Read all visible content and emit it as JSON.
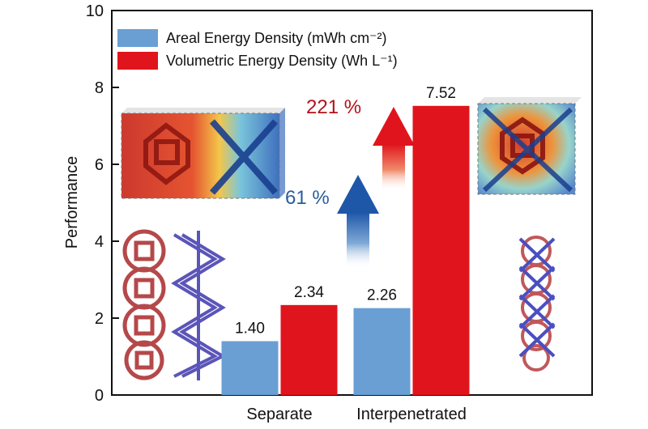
{
  "chart_data": {
    "type": "bar",
    "categories": [
      "Separate",
      "Interpenetrated"
    ],
    "series": [
      {
        "name": "Areal Energy Density (mWh cm⁻²)",
        "values": [
          1.4,
          2.26
        ],
        "color": "#6a9fd4"
      },
      {
        "name": "Volumetric Energy Density (Wh L⁻¹)",
        "values": [
          2.34,
          7.52
        ],
        "color": "#e0141c"
      }
    ],
    "data_labels": [
      [
        "1.40",
        "2.26"
      ],
      [
        "2.34",
        "7.52"
      ]
    ],
    "ylabel": "Performance",
    "xlabel": "",
    "ylim": [
      0,
      10
    ],
    "yticks": [
      "0",
      "2",
      "4",
      "6",
      "8",
      "10"
    ],
    "grid": false,
    "legend_position": "top-left",
    "annotations": [
      {
        "text": "61 %",
        "color": "#2a5d9c"
      },
      {
        "text": "221 %",
        "color": "#b3121a"
      }
    ]
  }
}
